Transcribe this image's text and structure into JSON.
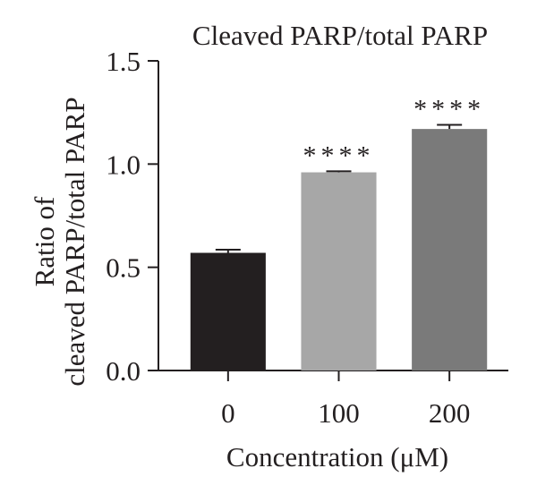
{
  "chart_data": {
    "type": "bar",
    "title": "Cleaved PARP/total PARP",
    "xlabel": "Concentration (μM)",
    "ylabel_lines": [
      "Ratio of",
      "cleaved PARP/total PARP"
    ],
    "categories": [
      "0",
      "100",
      "200"
    ],
    "values": [
      0.57,
      0.96,
      1.17
    ],
    "errors": [
      0.015,
      0.005,
      0.02
    ],
    "significance": [
      "",
      "****",
      "****"
    ],
    "colors": [
      "#231f20",
      "#a7a7a7",
      "#7a7a7a"
    ],
    "ylim": [
      0,
      1.5
    ],
    "yticks": [
      "0.0",
      "0.5",
      "1.0",
      "1.5"
    ],
    "grid": false
  }
}
